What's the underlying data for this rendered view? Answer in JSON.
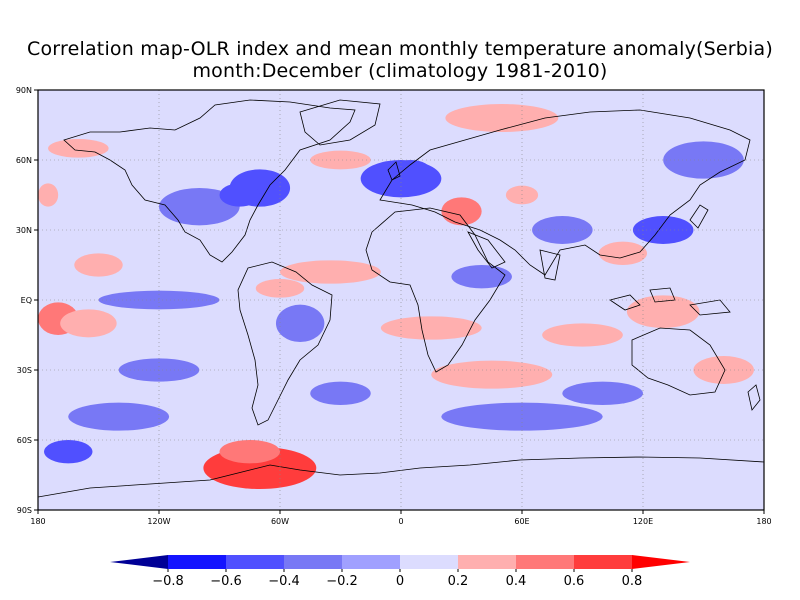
{
  "title": {
    "line1": "Correlation map-OLR index and mean monthly temperature anomaly(Serbia)",
    "line2": "month:December (climatology 1981-2010)"
  },
  "map": {
    "projection": "equirectangular",
    "lon_range": [
      -180,
      180
    ],
    "lat_range": [
      -90,
      90
    ],
    "grid": true,
    "lat_ticks": [
      "90N",
      "60N",
      "30N",
      "EQ",
      "30S",
      "60S",
      "90S"
    ],
    "lon_ticks": [
      "180",
      "120W",
      "60W",
      "0",
      "60E",
      "120E",
      "180"
    ],
    "background_color": "#dcdcfe"
  },
  "colorbar": {
    "levels": [
      "-0.8",
      "-0.6",
      "-0.4",
      "-0.2",
      "0",
      "0.2",
      "0.4",
      "0.6",
      "0.8"
    ],
    "colors": [
      "#000096",
      "#1414ff",
      "#5050ff",
      "#7878f5",
      "#a0a0ff",
      "#dcdcfe",
      "#ffafaf",
      "#ff7878",
      "#ff3c3c",
      "#ff0000"
    ]
  },
  "chart_data": {
    "type": "heatmap",
    "title": "Correlation map-OLR index and mean monthly temperature anomaly(Serbia)",
    "subtitle": "month:December (climatology 1981-2010)",
    "variable": "correlation",
    "xlim": [
      -180,
      180
    ],
    "ylim": [
      -90,
      90
    ],
    "color_scale": [
      -0.8,
      -0.6,
      -0.4,
      -0.2,
      0,
      0.2,
      0.4,
      0.6,
      0.8
    ],
    "regions": [
      {
        "lon": -150,
        "lat": 15,
        "rlon": 12,
        "rlat": 5,
        "value": 0.3
      },
      {
        "lon": -170,
        "lat": -8,
        "rlon": 10,
        "rlat": 7,
        "value": 0.5
      },
      {
        "lon": -155,
        "lat": -10,
        "rlon": 14,
        "rlat": 6,
        "value": 0.3
      },
      {
        "lon": -70,
        "lat": -72,
        "rlon": 28,
        "rlat": 9,
        "value": 0.6
      },
      {
        "lon": -75,
        "lat": -65,
        "rlon": 15,
        "rlat": 5,
        "value": 0.4
      },
      {
        "lon": -35,
        "lat": 12,
        "rlon": 25,
        "rlat": 5,
        "value": 0.35
      },
      {
        "lon": -60,
        "lat": 5,
        "rlon": 12,
        "rlat": 4,
        "value": 0.35
      },
      {
        "lon": 15,
        "lat": -12,
        "rlon": 25,
        "rlat": 5,
        "value": 0.35
      },
      {
        "lon": 45,
        "lat": -32,
        "rlon": 30,
        "rlat": 6,
        "value": 0.35
      },
      {
        "lon": 90,
        "lat": -15,
        "rlon": 20,
        "rlat": 5,
        "value": 0.3
      },
      {
        "lon": 30,
        "lat": 38,
        "rlon": 10,
        "rlat": 6,
        "value": 0.5
      },
      {
        "lon": 60,
        "lat": 45,
        "rlon": 8,
        "rlat": 4,
        "value": 0.35
      },
      {
        "lon": 50,
        "lat": 78,
        "rlon": 28,
        "rlat": 6,
        "value": 0.35
      },
      {
        "lon": 110,
        "lat": 20,
        "rlon": 12,
        "rlat": 5,
        "value": 0.35
      },
      {
        "lon": 130,
        "lat": -5,
        "rlon": 18,
        "rlat": 7,
        "value": 0.35
      },
      {
        "lon": 160,
        "lat": -30,
        "rlon": 15,
        "rlat": 6,
        "value": 0.3
      },
      {
        "lon": -160,
        "lat": 65,
        "rlon": 15,
        "rlat": 4,
        "value": 0.3
      },
      {
        "lon": -30,
        "lat": 60,
        "rlon": 15,
        "rlat": 4,
        "value": 0.3
      },
      {
        "lon": -175,
        "lat": 45,
        "rlon": 5,
        "rlat": 5,
        "value": 0.3
      },
      {
        "lon": -100,
        "lat": 40,
        "rlon": 20,
        "rlat": 8,
        "value": -0.4
      },
      {
        "lon": -70,
        "lat": 48,
        "rlon": 15,
        "rlat": 8,
        "value": -0.5
      },
      {
        "lon": -80,
        "lat": 45,
        "rlon": 10,
        "rlat": 5,
        "value": -0.6
      },
      {
        "lon": 0,
        "lat": 52,
        "rlon": 20,
        "rlat": 8,
        "value": -0.5
      },
      {
        "lon": 5,
        "lat": 55,
        "rlon": 10,
        "rlat": 5,
        "value": -0.6
      },
      {
        "lon": 130,
        "lat": 30,
        "rlon": 15,
        "rlat": 6,
        "value": -0.5
      },
      {
        "lon": -165,
        "lat": -65,
        "rlon": 12,
        "rlat": 5,
        "value": -0.5
      },
      {
        "lon": -140,
        "lat": -50,
        "rlon": 25,
        "rlat": 6,
        "value": -0.3
      },
      {
        "lon": 60,
        "lat": -50,
        "rlon": 40,
        "rlat": 6,
        "value": -0.3
      },
      {
        "lon": 100,
        "lat": -40,
        "rlon": 20,
        "rlat": 5,
        "value": -0.3
      },
      {
        "lon": -120,
        "lat": 0,
        "rlon": 30,
        "rlat": 4,
        "value": -0.3
      },
      {
        "lon": -50,
        "lat": -10,
        "rlon": 12,
        "rlat": 8,
        "value": -0.3
      },
      {
        "lon": -30,
        "lat": -40,
        "rlon": 15,
        "rlat": 5,
        "value": -0.3
      },
      {
        "lon": 80,
        "lat": 30,
        "rlon": 15,
        "rlat": 6,
        "value": -0.3
      },
      {
        "lon": 150,
        "lat": 60,
        "rlon": 20,
        "rlat": 8,
        "value": -0.3
      },
      {
        "lon": -120,
        "lat": -30,
        "rlon": 20,
        "rlat": 5,
        "value": -0.3
      },
      {
        "lon": 40,
        "lat": 10,
        "rlon": 15,
        "rlat": 5,
        "value": -0.3
      }
    ]
  }
}
